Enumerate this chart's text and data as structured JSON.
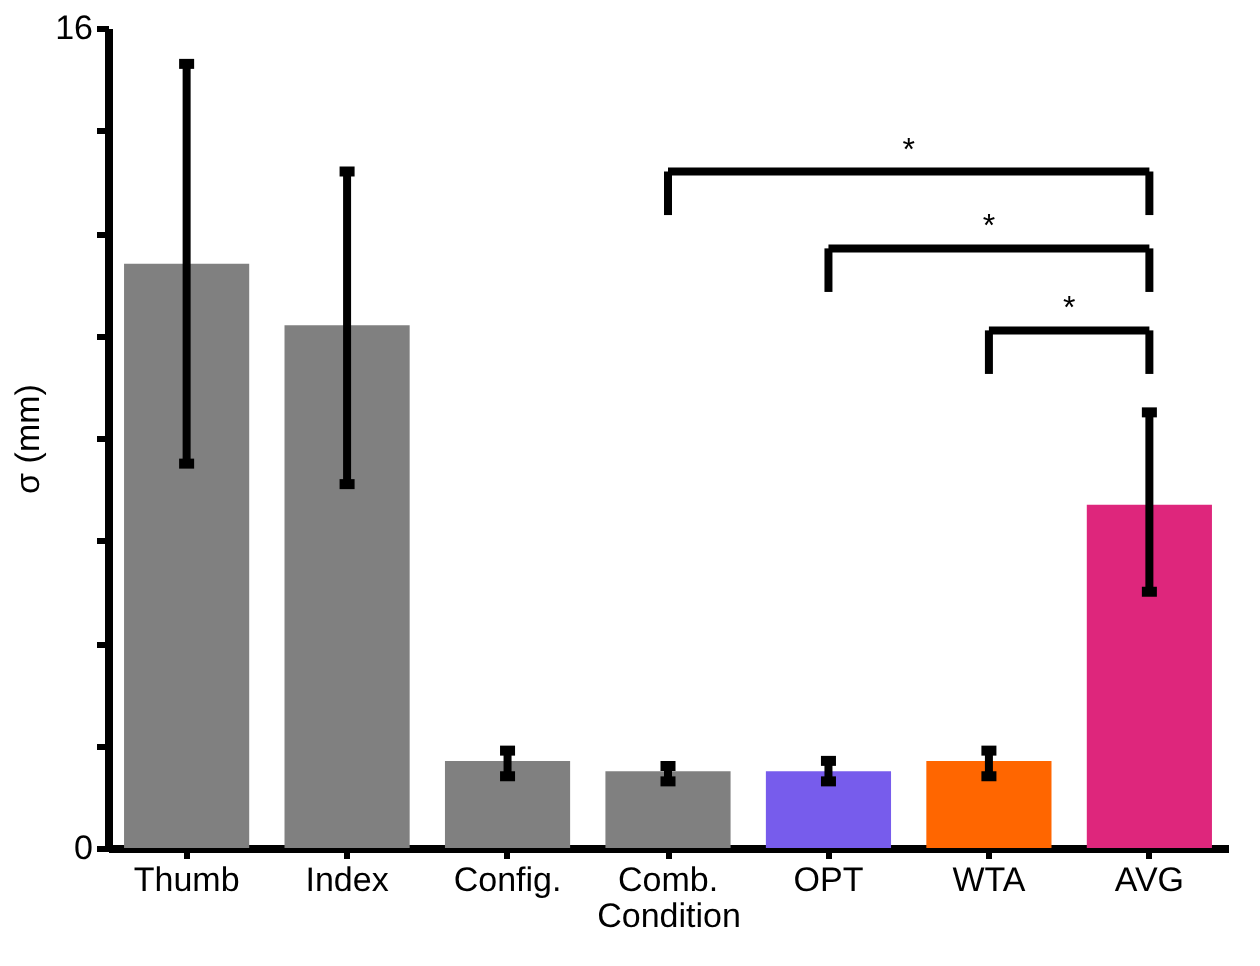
{
  "chart_data": {
    "type": "bar",
    "xlabel": "Condition",
    "ylabel": "σ (mm)",
    "categories": [
      "Thumb",
      "Index",
      "Config.",
      "Comb.",
      "OPT",
      "WTA",
      "AVG"
    ],
    "values": [
      11.4,
      10.2,
      1.7,
      1.5,
      1.5,
      1.7,
      6.7
    ],
    "errors": [
      [
        7.5,
        15.3
      ],
      [
        7.1,
        13.2
      ],
      [
        1.4,
        1.9
      ],
      [
        1.3,
        1.6
      ],
      [
        1.3,
        1.7
      ],
      [
        1.4,
        1.9
      ],
      [
        5.0,
        8.5
      ]
    ],
    "colors": [
      "#808080",
      "#808080",
      "#808080",
      "#808080",
      "#775cec",
      "#ff6600",
      "#de267c"
    ],
    "ylim": [
      0,
      16
    ],
    "yticks": [
      0,
      {
        "value": 2,
        "label": null
      },
      {
        "value": 4,
        "label": null
      },
      {
        "value": 6,
        "label": null
      },
      {
        "value": 8,
        "label": null
      },
      {
        "value": 10,
        "label": null
      },
      {
        "value": 12,
        "label": null
      },
      {
        "value": 14,
        "label": null
      },
      16
    ],
    "grid": false,
    "annotations": [
      "*",
      "*",
      "*"
    ]
  }
}
